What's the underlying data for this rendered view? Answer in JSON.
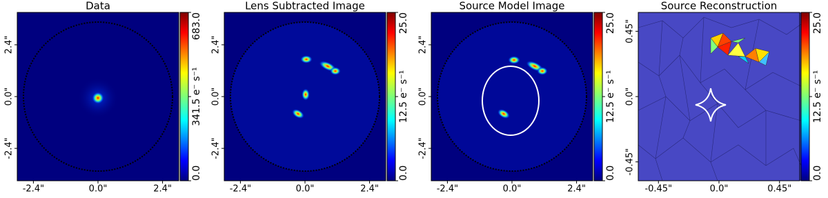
{
  "chart_data": [
    {
      "type": "image",
      "title": "Data",
      "xlim": [
        -3.0,
        3.0
      ],
      "ylim": [
        -3.9,
        3.9
      ],
      "xticks": [
        {
          "value": -2.4,
          "label": "-2.4\""
        },
        {
          "value": 0,
          "label": "0.0\""
        },
        {
          "value": 2.4,
          "label": "2.4\""
        }
      ],
      "yticks": [
        {
          "value": -2.4,
          "label": "-2.4\""
        },
        {
          "value": 0,
          "label": "0.0\""
        },
        {
          "value": 2.4,
          "label": "2.4\""
        }
      ],
      "colorbar_lim": [
        0,
        683.0
      ],
      "colorbar_ticks": [
        {
          "value": 0,
          "label": "0.0"
        },
        {
          "value": 341.5,
          "label": "341.5 e⁻ s⁻¹"
        },
        {
          "value": 683.0,
          "label": "683.0"
        }
      ]
    },
    {
      "type": "image",
      "title": "Lens Subtracted Image",
      "xlim": [
        -3.0,
        3.0
      ],
      "ylim": [
        -3.9,
        3.9
      ],
      "xticks": [
        {
          "value": -2.4,
          "label": "-2.4\""
        },
        {
          "value": 0,
          "label": "0.0\""
        },
        {
          "value": 2.4,
          "label": "2.4\""
        }
      ],
      "yticks": [
        {
          "value": -2.4,
          "label": "-2.4\""
        },
        {
          "value": 0,
          "label": "0.0\""
        },
        {
          "value": 2.4,
          "label": "2.4\""
        }
      ],
      "colorbar_lim": [
        0,
        25.0
      ],
      "colorbar_ticks": [
        {
          "value": 0,
          "label": "0.0"
        },
        {
          "value": 12.5,
          "label": "12.5 e⁻ s⁻¹"
        },
        {
          "value": 25.0,
          "label": "25.0"
        }
      ]
    },
    {
      "type": "image",
      "title": "Source Model Image",
      "xlim": [
        -3.0,
        3.0
      ],
      "ylim": [
        -3.9,
        3.9
      ],
      "xticks": [
        {
          "value": -2.4,
          "label": "-2.4\""
        },
        {
          "value": 0,
          "label": "0.0\""
        },
        {
          "value": 2.4,
          "label": "2.4\""
        }
      ],
      "yticks": [
        {
          "value": -2.4,
          "label": "-2.4\""
        },
        {
          "value": 0,
          "label": "0.0\""
        },
        {
          "value": 2.4,
          "label": "2.4\""
        }
      ],
      "colorbar_lim": [
        0,
        25.0
      ],
      "colorbar_ticks": [
        {
          "value": 0,
          "label": "0.0"
        },
        {
          "value": 12.5,
          "label": "12.5 e⁻ s⁻¹"
        },
        {
          "value": 25.0,
          "label": "25.0"
        }
      ]
    },
    {
      "type": "image",
      "title": "Source Reconstruction",
      "xlim": [
        -0.6,
        0.6
      ],
      "ylim": [
        -0.58,
        0.58
      ],
      "xticks": [
        {
          "value": -0.45,
          "label": "-0.45\""
        },
        {
          "value": 0,
          "label": "0.0\""
        },
        {
          "value": 0.45,
          "label": "0.45\""
        }
      ],
      "yticks": [
        {
          "value": -0.45,
          "label": "-0.45\""
        },
        {
          "value": 0,
          "label": "0.0\""
        },
        {
          "value": 0.45,
          "label": "0.45\""
        }
      ],
      "colorbar_lim": [
        0,
        25.0
      ],
      "colorbar_ticks": [
        {
          "value": 0,
          "label": "0.0"
        },
        {
          "value": 12.5,
          "label": "12.5 e⁻ s⁻¹"
        },
        {
          "value": 25.0,
          "label": "25.0"
        }
      ]
    }
  ]
}
